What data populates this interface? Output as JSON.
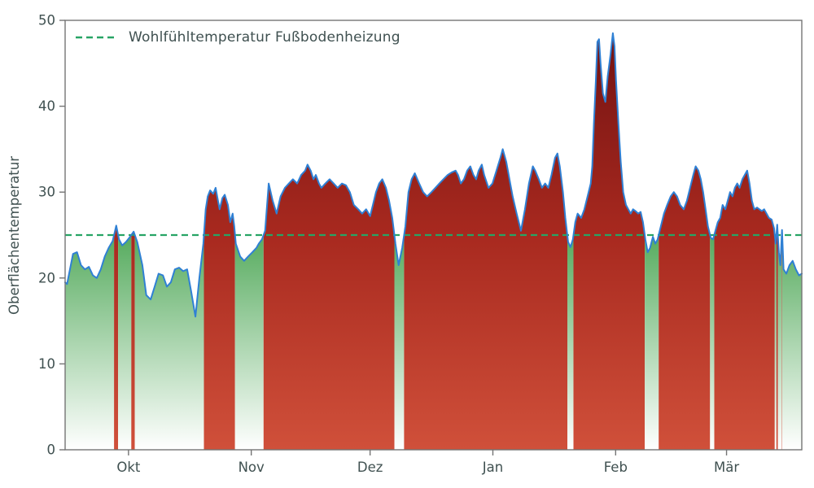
{
  "figure": {
    "background": "#ffffff"
  },
  "chart_data": {
    "type": "area",
    "title": "",
    "ylabel": "Oberflächentemperatur",
    "xlabel": "",
    "ylim": [
      0,
      50
    ],
    "xlim": [
      0,
      186
    ],
    "yticks": [
      0,
      10,
      20,
      30,
      40,
      50
    ],
    "xticks": [
      {
        "pos": 16,
        "label": "Okt"
      },
      {
        "pos": 47,
        "label": "Nov"
      },
      {
        "pos": 77,
        "label": "Dez"
      },
      {
        "pos": 108,
        "label": "Jan"
      },
      {
        "pos": 139,
        "label": "Feb"
      },
      {
        "pos": 167,
        "label": "Mär"
      }
    ],
    "grid": false,
    "legend_position": "upper-left",
    "threshold": {
      "value": 25,
      "label": "Wohlfühltemperatur Fußbodenheizung",
      "color": "#27a465",
      "line_style": "dashed"
    },
    "colors": {
      "line": "#2f80d4",
      "fill_above_top": "#701111",
      "fill_above_mid": "#a8291f",
      "fill_above_bottom": "#d0503a",
      "fill_below_top": "#56ab5e",
      "fill_below_bottom": "#ffffff",
      "axis_text": "#3f5050",
      "spine": "#747474"
    },
    "series": [
      {
        "name": "Oberflächentemperatur",
        "x_unit": "days_from_axis_start",
        "points": [
          [
            0,
            19.5
          ],
          [
            0.5,
            19.3
          ],
          [
            1,
            20.5
          ],
          [
            2,
            22.8
          ],
          [
            3,
            23.0
          ],
          [
            4,
            21.5
          ],
          [
            5,
            21.0
          ],
          [
            6,
            21.3
          ],
          [
            7,
            20.3
          ],
          [
            8,
            20.0
          ],
          [
            9,
            21.0
          ],
          [
            10,
            22.5
          ],
          [
            11,
            23.5
          ],
          [
            12,
            24.3
          ],
          [
            12.9,
            26.1
          ],
          [
            13.6,
            24.5
          ],
          [
            14.4,
            23.8
          ],
          [
            15.4,
            24.2
          ],
          [
            16.4,
            24.8
          ],
          [
            17.3,
            25.4
          ],
          [
            18.2,
            24.2
          ],
          [
            19.5,
            21.5
          ],
          [
            20.5,
            18.0
          ],
          [
            21.6,
            17.5
          ],
          [
            22.6,
            19.0
          ],
          [
            23.6,
            20.5
          ],
          [
            24.7,
            20.3
          ],
          [
            25.7,
            19.0
          ],
          [
            26.7,
            19.5
          ],
          [
            27.7,
            21.0
          ],
          [
            28.8,
            21.2
          ],
          [
            29.8,
            20.8
          ],
          [
            30.8,
            21.0
          ],
          [
            31.8,
            18.5
          ],
          [
            32.9,
            15.5
          ],
          [
            33.9,
            20.0
          ],
          [
            34.9,
            24.0
          ],
          [
            35.5,
            28.0
          ],
          [
            36.0,
            29.5
          ],
          [
            36.6,
            30.2
          ],
          [
            37.4,
            29.8
          ],
          [
            38.0,
            30.5
          ],
          [
            38.6,
            29.0
          ],
          [
            39.0,
            28.0
          ],
          [
            39.7,
            29.3
          ],
          [
            40.3,
            29.7
          ],
          [
            41.1,
            28.5
          ],
          [
            41.7,
            26.5
          ],
          [
            42.3,
            27.5
          ],
          [
            42.7,
            26.0
          ],
          [
            43.1,
            24.0
          ],
          [
            44.2,
            22.5
          ],
          [
            45.2,
            22.0
          ],
          [
            46.2,
            22.5
          ],
          [
            47.3,
            23.0
          ],
          [
            48.3,
            23.5
          ],
          [
            48.9,
            24.0
          ],
          [
            49.7,
            24.5
          ],
          [
            50.5,
            25.5
          ],
          [
            51.4,
            31.0
          ],
          [
            52.4,
            29.0
          ],
          [
            53.4,
            27.5
          ],
          [
            54.4,
            29.5
          ],
          [
            55.5,
            30.5
          ],
          [
            56.5,
            31.0
          ],
          [
            57.5,
            31.5
          ],
          [
            58.6,
            31.0
          ],
          [
            59.6,
            32.0
          ],
          [
            60.6,
            32.5
          ],
          [
            61.2,
            33.2
          ],
          [
            62.0,
            32.5
          ],
          [
            62.7,
            31.5
          ],
          [
            63.3,
            32.0
          ],
          [
            64.1,
            31.0
          ],
          [
            64.7,
            30.5
          ],
          [
            65.7,
            31.0
          ],
          [
            66.8,
            31.5
          ],
          [
            67.8,
            31.0
          ],
          [
            68.8,
            30.5
          ],
          [
            69.9,
            31.0
          ],
          [
            70.9,
            30.8
          ],
          [
            71.9,
            30.0
          ],
          [
            72.9,
            28.5
          ],
          [
            74.0,
            28.0
          ],
          [
            75.0,
            27.5
          ],
          [
            76.0,
            28.0
          ],
          [
            77.0,
            27.2
          ],
          [
            77.7,
            28.5
          ],
          [
            78.5,
            30.0
          ],
          [
            79.3,
            31.0
          ],
          [
            80.1,
            31.5
          ],
          [
            81.0,
            30.5
          ],
          [
            81.8,
            29.0
          ],
          [
            82.6,
            27.0
          ],
          [
            83.4,
            24.0
          ],
          [
            84.2,
            21.5
          ],
          [
            85.1,
            23.5
          ],
          [
            85.9,
            26.0
          ],
          [
            86.7,
            30.0
          ],
          [
            87.5,
            31.5
          ],
          [
            88.3,
            32.2
          ],
          [
            89.4,
            31.0
          ],
          [
            90.4,
            30.0
          ],
          [
            91.4,
            29.5
          ],
          [
            92.5,
            30.0
          ],
          [
            93.5,
            30.5
          ],
          [
            94.5,
            31.0
          ],
          [
            95.5,
            31.5
          ],
          [
            96.6,
            32.0
          ],
          [
            97.6,
            32.3
          ],
          [
            98.6,
            32.5
          ],
          [
            99.2,
            32.0
          ],
          [
            99.9,
            31.0
          ],
          [
            100.7,
            31.5
          ],
          [
            101.5,
            32.5
          ],
          [
            102.3,
            33.0
          ],
          [
            103.1,
            32.0
          ],
          [
            103.8,
            31.5
          ],
          [
            104.4,
            32.5
          ],
          [
            105.2,
            33.2
          ],
          [
            105.8,
            32.0
          ],
          [
            106.9,
            30.5
          ],
          [
            107.9,
            31.0
          ],
          [
            108.9,
            32.5
          ],
          [
            109.9,
            34.0
          ],
          [
            110.5,
            35.0
          ],
          [
            111.4,
            33.5
          ],
          [
            112.2,
            31.5
          ],
          [
            113.0,
            29.5
          ],
          [
            114.0,
            27.5
          ],
          [
            115.1,
            25.5
          ],
          [
            116.1,
            28.0
          ],
          [
            117.1,
            31.0
          ],
          [
            118.1,
            33.0
          ],
          [
            118.7,
            32.5
          ],
          [
            119.6,
            31.5
          ],
          [
            120.4,
            30.5
          ],
          [
            121.2,
            31.0
          ],
          [
            122.0,
            30.5
          ],
          [
            122.8,
            32.0
          ],
          [
            123.7,
            34.0
          ],
          [
            124.3,
            34.5
          ],
          [
            124.9,
            33.0
          ],
          [
            125.7,
            30.0
          ],
          [
            126.3,
            27.0
          ],
          [
            127.0,
            24.2
          ],
          [
            127.6,
            23.6
          ],
          [
            128.2,
            24.5
          ],
          [
            128.8,
            26.5
          ],
          [
            129.4,
            27.5
          ],
          [
            130.3,
            27.0
          ],
          [
            131.1,
            28.0
          ],
          [
            131.9,
            29.5
          ],
          [
            132.7,
            31.0
          ],
          [
            133.1,
            33.0
          ],
          [
            133.5,
            38.0
          ],
          [
            134.0,
            43.0
          ],
          [
            134.4,
            47.5
          ],
          [
            134.8,
            47.8
          ],
          [
            135.2,
            45.0
          ],
          [
            135.8,
            41.5
          ],
          [
            136.4,
            40.5
          ],
          [
            137.0,
            43.5
          ],
          [
            137.7,
            46.0
          ],
          [
            138.3,
            48.5
          ],
          [
            138.7,
            47.0
          ],
          [
            139.1,
            43.0
          ],
          [
            139.7,
            38.0
          ],
          [
            140.3,
            33.5
          ],
          [
            140.9,
            30.0
          ],
          [
            141.6,
            28.5
          ],
          [
            142.2,
            28.0
          ],
          [
            142.8,
            27.5
          ],
          [
            143.4,
            28.0
          ],
          [
            144.0,
            27.8
          ],
          [
            144.7,
            27.5
          ],
          [
            145.3,
            27.7
          ],
          [
            145.9,
            26.5
          ],
          [
            146.5,
            24.5
          ],
          [
            147.1,
            23.0
          ],
          [
            147.7,
            23.5
          ],
          [
            148.4,
            24.8
          ],
          [
            149.0,
            24.0
          ],
          [
            149.6,
            24.5
          ],
          [
            150.4,
            26.0
          ],
          [
            151.2,
            27.5
          ],
          [
            152.0,
            28.5
          ],
          [
            152.9,
            29.5
          ],
          [
            153.7,
            30.0
          ],
          [
            154.5,
            29.5
          ],
          [
            155.3,
            28.5
          ],
          [
            156.2,
            28.0
          ],
          [
            157.0,
            29.0
          ],
          [
            157.8,
            30.5
          ],
          [
            158.6,
            32.0
          ],
          [
            159.2,
            33.0
          ],
          [
            159.9,
            32.5
          ],
          [
            160.5,
            31.5
          ],
          [
            161.1,
            30.0
          ],
          [
            161.7,
            28.0
          ],
          [
            162.3,
            26.0
          ],
          [
            163.0,
            24.7
          ],
          [
            163.6,
            24.5
          ],
          [
            164.2,
            25.5
          ],
          [
            164.8,
            26.5
          ],
          [
            165.4,
            27.0
          ],
          [
            166.0,
            28.5
          ],
          [
            166.7,
            28.0
          ],
          [
            167.3,
            29.0
          ],
          [
            167.9,
            30.0
          ],
          [
            168.5,
            29.5
          ],
          [
            169.1,
            30.5
          ],
          [
            169.7,
            31.0
          ],
          [
            170.3,
            30.5
          ],
          [
            171.0,
            31.5
          ],
          [
            171.6,
            32.0
          ],
          [
            172.2,
            32.5
          ],
          [
            172.8,
            31.0
          ],
          [
            173.4,
            29.0
          ],
          [
            174.0,
            28.0
          ],
          [
            174.7,
            28.2
          ],
          [
            175.3,
            28.0
          ],
          [
            175.9,
            27.8
          ],
          [
            176.5,
            28.0
          ],
          [
            177.1,
            27.5
          ],
          [
            177.7,
            27.0
          ],
          [
            178.4,
            26.8
          ],
          [
            179.0,
            25.8
          ],
          [
            179.4,
            24.0
          ],
          [
            179.8,
            26.2
          ],
          [
            180.2,
            23.0
          ],
          [
            180.6,
            21.5
          ],
          [
            181.0,
            25.6
          ],
          [
            181.4,
            21.0
          ],
          [
            182.1,
            20.5
          ],
          [
            182.9,
            21.5
          ],
          [
            183.7,
            22.0
          ],
          [
            184.5,
            21.0
          ],
          [
            185.3,
            20.3
          ],
          [
            186.0,
            20.5
          ]
        ]
      }
    ]
  }
}
